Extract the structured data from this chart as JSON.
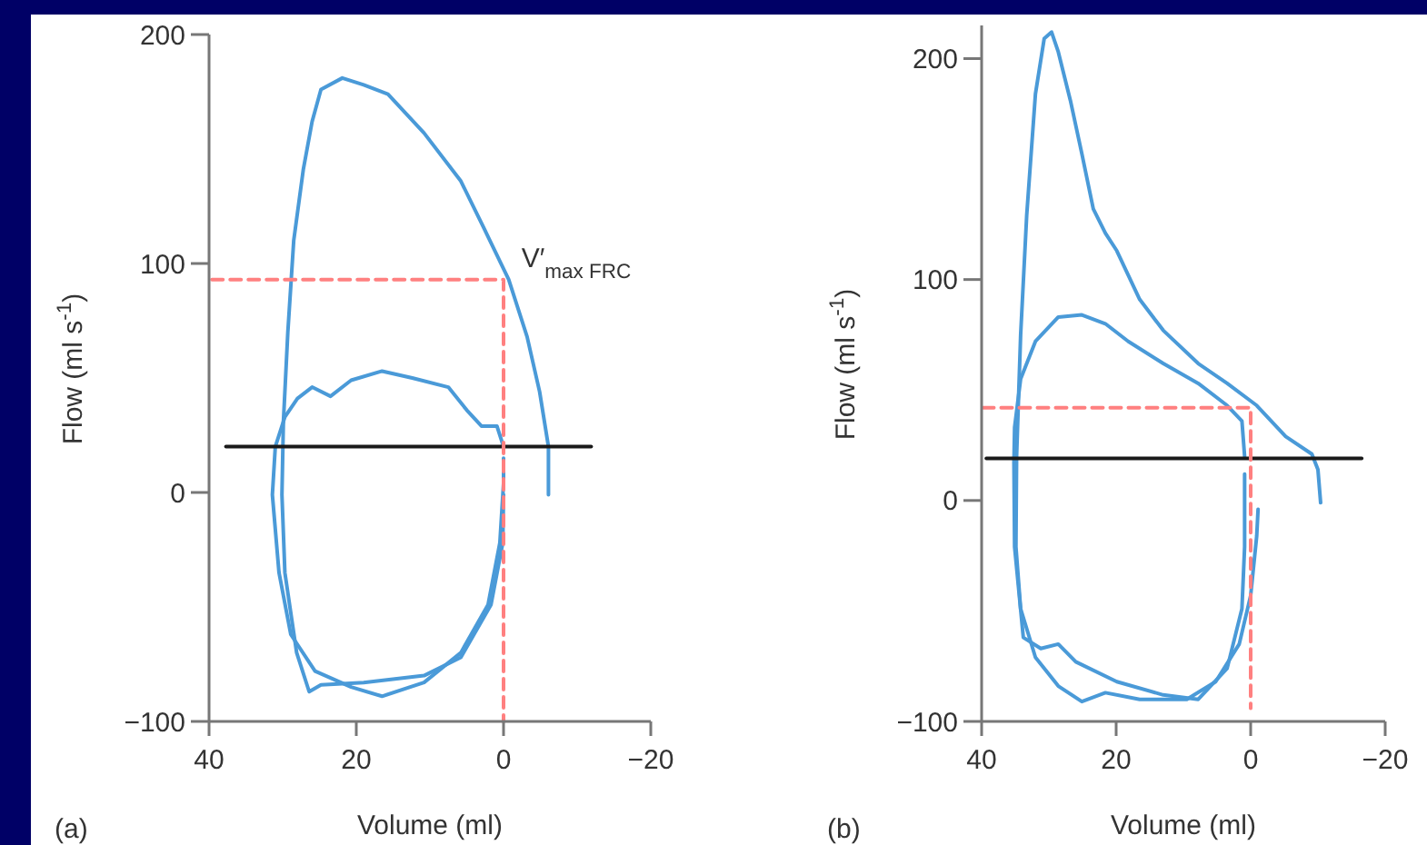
{
  "chart_data": [
    {
      "type": "line",
      "title": "(a)",
      "xlabel": "Volume (ml)",
      "ylabel": "Flow (ml s$^{-1}$)",
      "xlim": [
        40,
        -20
      ],
      "ylim": [
        -100,
        200
      ],
      "xticks": [
        40,
        20,
        0,
        -20
      ],
      "yticks": [
        -100,
        0,
        100,
        200
      ],
      "annotations": [
        {
          "text": "V′$_{max FRC}$",
          "x": -0.7,
          "y": 93
        }
      ],
      "series": [
        {
          "color": "#4a9ad8",
          "x": [
            -6.1,
            -6.1,
            -4.9,
            -3.2,
            -0.7,
            2.6,
            5.8,
            10.8,
            15.7,
            19,
            21.9,
            24.8,
            26,
            27.2,
            28.5,
            29.3,
            29.9,
            30.1,
            29.7,
            28.1,
            26.4,
            24.8,
            19,
            10.8,
            5.8,
            1.7,
            0.1,
            0
          ],
          "values": [
            -1,
            20,
            44,
            68,
            93,
            115,
            136,
            157,
            174,
            178,
            181,
            176,
            162,
            141,
            110,
            70,
            31,
            -1,
            -35,
            -70,
            -87,
            -84,
            -83,
            -80,
            -72,
            -49,
            -22,
            -1
          ]
        },
        {
          "color": "#4a9ad8",
          "x": [
            0,
            0.9,
            3,
            5,
            7.5,
            12.4,
            16.5,
            20.7,
            23.5,
            26,
            28,
            29.7,
            31,
            31.4,
            30.5,
            28.9,
            25.6,
            20.7,
            16.5,
            10.8,
            5.8,
            2.1,
            0.5,
            0,
            0
          ],
          "values": [
            20,
            29,
            29,
            36,
            46,
            50,
            53,
            49,
            42,
            46,
            41,
            33,
            20,
            -1,
            -35,
            -62,
            -78,
            -85,
            -89,
            -83,
            -70,
            -49,
            -22,
            4,
            15
          ]
        },
        {
          "color": "#1a1a1a",
          "x": [
            37.7,
            -11.9
          ],
          "values": [
            20,
            20
          ]
        },
        {
          "color": "#ff8080",
          "line_style": "dashed",
          "x": [
            39.6,
            0,
            0
          ],
          "values": [
            93,
            93,
            -100
          ]
        }
      ]
    },
    {
      "type": "line",
      "title": "(b)",
      "xlabel": "Volume (ml)",
      "ylabel": "Flow (ml s$^{-1}$)",
      "xlim": [
        40,
        -20
      ],
      "ylim": [
        -100,
        215
      ],
      "xticks": [
        40,
        20,
        0,
        -20
      ],
      "yticks": [
        -100,
        0,
        100,
        200
      ],
      "series": [
        {
          "color": "#4a9ad8",
          "x": [
            -10.4,
            -10,
            -9.1,
            -5.2,
            -0.9,
            3.5,
            7.8,
            13,
            16.5,
            19.9,
            21.6,
            23.4,
            25.1,
            26.8,
            28.6,
            29.6,
            30.7,
            32,
            33.3,
            34.2,
            34.8,
            34.9,
            34.2,
            32,
            28.6,
            25.1,
            21.6,
            16.5,
            9.5,
            5.2,
            1.7,
            0,
            -0.9,
            -1.1
          ],
          "values": [
            -1,
            14,
            21,
            29,
            43,
            53,
            62,
            77,
            91,
            113,
            121,
            132,
            157,
            181,
            203,
            212,
            209,
            184,
            129,
            75,
            20,
            -21,
            -49,
            -71,
            -84,
            -91,
            -87,
            -90,
            -90,
            -82,
            -65,
            -43,
            -16,
            -4
          ]
        },
        {
          "color": "#4a9ad8",
          "x": [
            0.9,
            1.3,
            3.5,
            7.8,
            13,
            18.2,
            21.6,
            25.1,
            28.6,
            32,
            34.2,
            35.1,
            35.2,
            35.1,
            33.8,
            31.2,
            28.6,
            26,
            19.9,
            13,
            7.8,
            3.5,
            1.3,
            0.9,
            0.9
          ],
          "values": [
            20,
            36,
            43,
            53,
            62,
            72,
            80,
            84,
            83,
            72,
            55,
            33,
            17,
            -21,
            -62,
            -67,
            -65,
            -73,
            -82,
            -88,
            -90,
            -76,
            -49,
            -21,
            12
          ]
        },
        {
          "color": "#1a1a1a",
          "x": [
            39.3,
            -16.5
          ],
          "values": [
            19,
            19
          ]
        },
        {
          "color": "#ff8080",
          "line_style": "dashed",
          "x": [
            39.8,
            0,
            0
          ],
          "values": [
            42,
            42,
            -94
          ]
        }
      ]
    }
  ]
}
